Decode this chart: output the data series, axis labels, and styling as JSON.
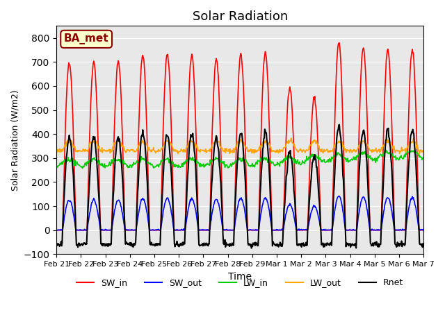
{
  "title": "Solar Radiation",
  "xlabel": "Time",
  "ylabel": "Solar Radiation (W/m2)",
  "ylim": [
    -100,
    850
  ],
  "yticks": [
    -100,
    0,
    100,
    200,
    300,
    400,
    500,
    600,
    700,
    800
  ],
  "xtick_labels": [
    "Feb 21",
    "Feb 22",
    "Feb 23",
    "Feb 24",
    "Feb 25",
    "Feb 26",
    "Feb 27",
    "Feb 28",
    "Feb 29",
    "Mar 1",
    "Mar 2",
    "Mar 3",
    "Mar 4",
    "Mar 5",
    "Mar 6",
    "Mar 7"
  ],
  "colors": {
    "SW_in": "#FF0000",
    "SW_out": "#0000FF",
    "LW_in": "#00CC00",
    "LW_out": "#FFA500",
    "Rnet": "#000000"
  },
  "linewidths": {
    "SW_in": 1.2,
    "SW_out": 1.2,
    "LW_in": 1.2,
    "LW_out": 1.2,
    "Rnet": 1.5
  },
  "annotation_text": "BA_met",
  "annotation_color": "#8B0000",
  "annotation_bgcolor": "#FFFFCC",
  "annotation_edgecolor": "#8B0000",
  "bg_color": "#E8E8E8",
  "fig_color": "#FFFFFF",
  "n_days": 15,
  "points_per_day": 48,
  "SW_peaks": [
    700,
    700,
    700,
    730,
    730,
    730,
    710,
    730,
    740,
    590,
    550,
    780,
    760,
    750,
    750
  ],
  "SW_out_factor": 0.18,
  "LW_in_base": 280,
  "LW_out_base": 330,
  "Rnet_day_factor": 0.55,
  "Rnet_night": -60
}
